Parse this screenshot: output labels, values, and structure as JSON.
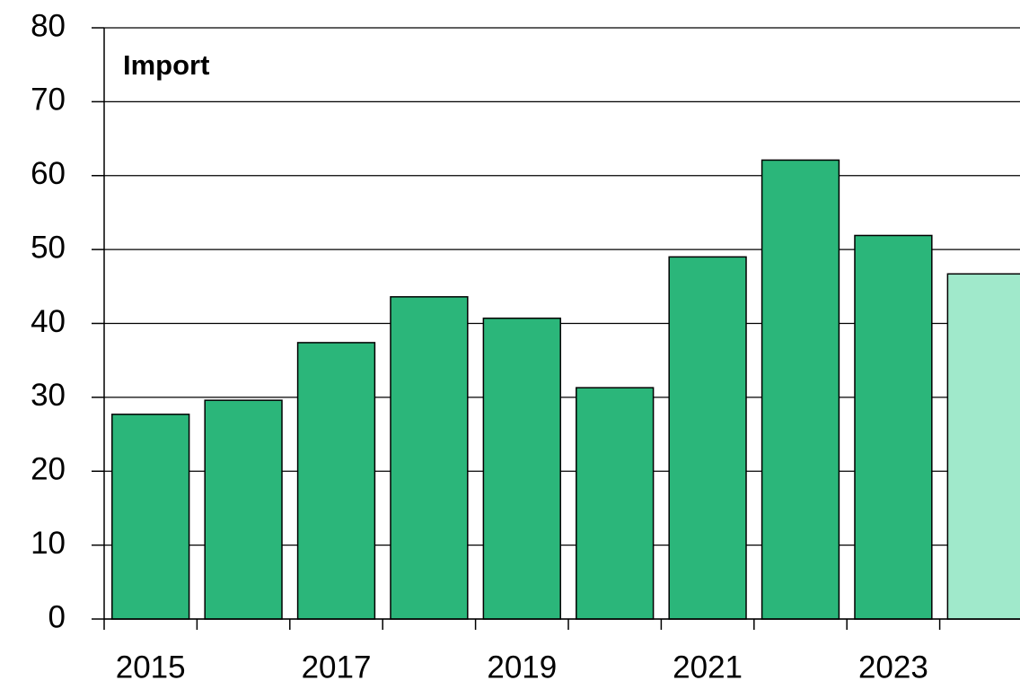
{
  "chart_data": {
    "type": "bar",
    "title": "Import",
    "categories": [
      "2015",
      null,
      "2017",
      null,
      "2019",
      null,
      "2021",
      null,
      "2023",
      null
    ],
    "values": [
      27.7,
      29.6,
      37.4,
      43.6,
      40.7,
      31.3,
      49.0,
      62.1,
      51.9,
      46.7
    ],
    "colors": [
      "#2bb67a",
      "#2bb67a",
      "#2bb67a",
      "#2bb67a",
      "#2bb67a",
      "#2bb67a",
      "#2bb67a",
      "#2bb67a",
      "#2bb67a",
      "#a0e9cb"
    ],
    "ylim": [
      0,
      80
    ],
    "yticks": [
      0,
      10,
      20,
      30,
      40,
      50,
      60,
      70,
      80
    ],
    "grid": true
  }
}
